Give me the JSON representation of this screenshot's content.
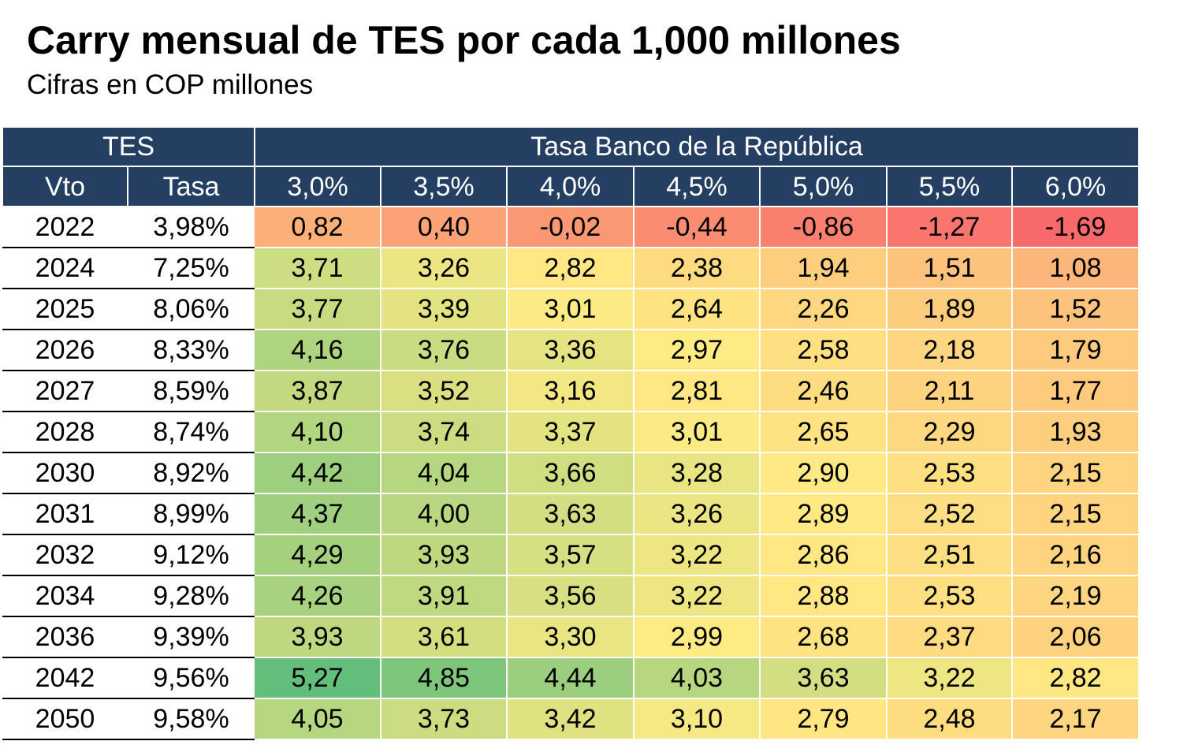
{
  "title": "Carry mensual de TES por cada 1,000 millones",
  "subtitle": "Cifras en COP millones",
  "chart_data": {
    "type": "heatmap",
    "title": "Carry mensual de TES por cada 1,000 millones",
    "subtitle": "Cifras en COP millones",
    "group_headers": [
      "TES",
      "Tasa Banco de la República"
    ],
    "row_headers": [
      "Vto",
      "Tasa"
    ],
    "columns": [
      "3,0%",
      "3,5%",
      "4,0%",
      "4,5%",
      "5,0%",
      "5,5%",
      "6,0%"
    ],
    "rows": [
      {
        "vto": "2022",
        "tasa": "3,98%",
        "values": [
          "0,82",
          "0,40",
          "-0,02",
          "-0,44",
          "-0,86",
          "-1,27",
          "-1,69"
        ]
      },
      {
        "vto": "2024",
        "tasa": "7,25%",
        "values": [
          "3,71",
          "3,26",
          "2,82",
          "2,38",
          "1,94",
          "1,51",
          "1,08"
        ]
      },
      {
        "vto": "2025",
        "tasa": "8,06%",
        "values": [
          "3,77",
          "3,39",
          "3,01",
          "2,64",
          "2,26",
          "1,89",
          "1,52"
        ]
      },
      {
        "vto": "2026",
        "tasa": "8,33%",
        "values": [
          "4,16",
          "3,76",
          "3,36",
          "2,97",
          "2,58",
          "2,18",
          "1,79"
        ]
      },
      {
        "vto": "2027",
        "tasa": "8,59%",
        "values": [
          "3,87",
          "3,52",
          "3,16",
          "2,81",
          "2,46",
          "2,11",
          "1,77"
        ]
      },
      {
        "vto": "2028",
        "tasa": "8,74%",
        "values": [
          "4,10",
          "3,74",
          "3,37",
          "3,01",
          "2,65",
          "2,29",
          "1,93"
        ]
      },
      {
        "vto": "2030",
        "tasa": "8,92%",
        "values": [
          "4,42",
          "4,04",
          "3,66",
          "3,28",
          "2,90",
          "2,53",
          "2,15"
        ]
      },
      {
        "vto": "2031",
        "tasa": "8,99%",
        "values": [
          "4,37",
          "4,00",
          "3,63",
          "3,26",
          "2,89",
          "2,52",
          "2,15"
        ]
      },
      {
        "vto": "2032",
        "tasa": "9,12%",
        "values": [
          "4,29",
          "3,93",
          "3,57",
          "3,22",
          "2,86",
          "2,51",
          "2,16"
        ]
      },
      {
        "vto": "2034",
        "tasa": "9,28%",
        "values": [
          "4,26",
          "3,91",
          "3,56",
          "3,22",
          "2,88",
          "2,53",
          "2,19"
        ]
      },
      {
        "vto": "2036",
        "tasa": "9,39%",
        "values": [
          "3,93",
          "3,61",
          "3,30",
          "2,99",
          "2,68",
          "2,37",
          "2,06"
        ]
      },
      {
        "vto": "2042",
        "tasa": "9,56%",
        "values": [
          "5,27",
          "4,85",
          "4,44",
          "4,03",
          "3,63",
          "3,22",
          "2,82"
        ]
      },
      {
        "vto": "2050",
        "tasa": "9,58%",
        "values": [
          "4,05",
          "3,73",
          "3,42",
          "3,10",
          "2,79",
          "2,48",
          "2,17"
        ]
      }
    ],
    "color_scale": {
      "low": "#f8696b",
      "mid": "#ffeb84",
      "high": "#63be7b",
      "header_bg": "#243f61",
      "header_text": "#ffffff"
    }
  }
}
